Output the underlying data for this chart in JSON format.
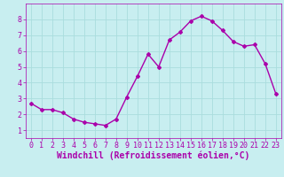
{
  "x": [
    0,
    1,
    2,
    3,
    4,
    5,
    6,
    7,
    8,
    9,
    10,
    11,
    12,
    13,
    14,
    15,
    16,
    17,
    18,
    19,
    20,
    21,
    22,
    23
  ],
  "y": [
    2.7,
    2.3,
    2.3,
    2.1,
    1.7,
    1.5,
    1.4,
    1.3,
    1.7,
    3.1,
    4.4,
    5.8,
    5.0,
    6.7,
    7.2,
    7.9,
    8.2,
    7.9,
    7.3,
    6.6,
    6.3,
    6.4,
    5.2,
    3.3
  ],
  "line_color": "#aa00aa",
  "marker": "D",
  "marker_size": 2,
  "bg_color": "#c8eef0",
  "grid_color": "#aadddd",
  "xlabel": "Windchill (Refroidissement éolien,°C)",
  "xlabel_color": "#aa00aa",
  "xlabel_fontsize": 7,
  "tick_color": "#aa00aa",
  "tick_fontsize": 6,
  "ylim": [
    0.5,
    9
  ],
  "xlim": [
    -0.5,
    23.5
  ],
  "yticks": [
    1,
    2,
    3,
    4,
    5,
    6,
    7,
    8
  ],
  "xticks": [
    0,
    1,
    2,
    3,
    4,
    5,
    6,
    7,
    8,
    9,
    10,
    11,
    12,
    13,
    14,
    15,
    16,
    17,
    18,
    19,
    20,
    21,
    22,
    23
  ]
}
